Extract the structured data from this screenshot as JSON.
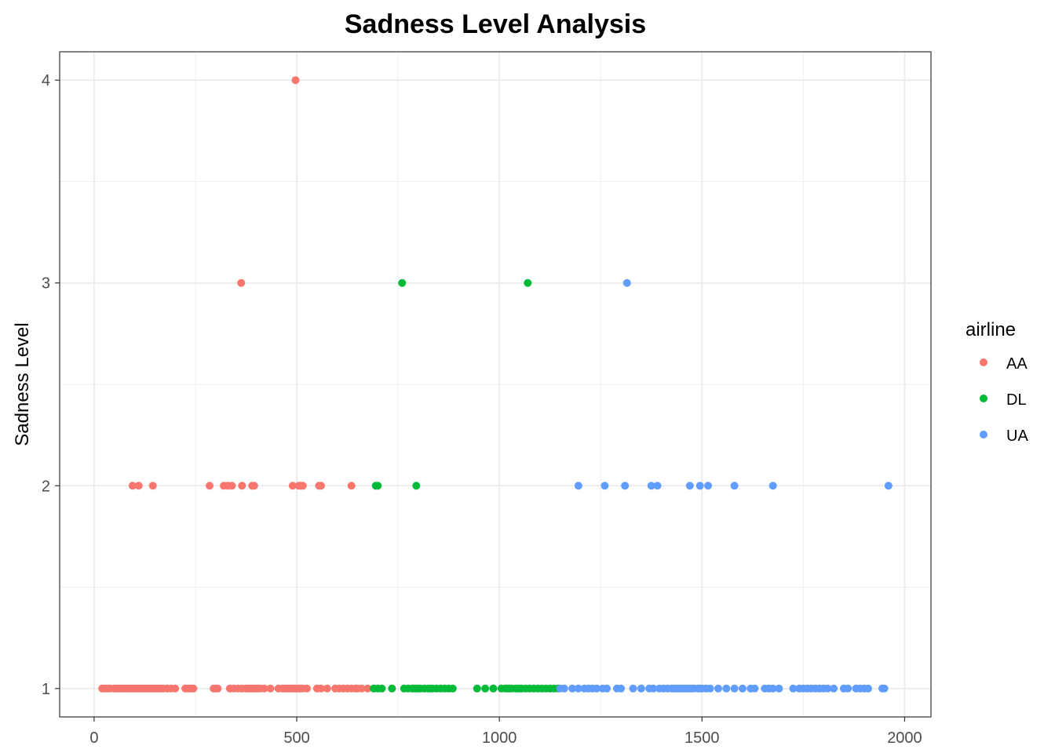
{
  "chart_data": {
    "type": "scatter",
    "title": "Sadness Level Analysis",
    "xlabel": "",
    "ylabel": "Sadness Level",
    "xlim": [
      -85,
      2065
    ],
    "ylim": [
      0.86,
      4.14
    ],
    "x_ticks": [
      0,
      500,
      1000,
      1500,
      2000
    ],
    "x_tick_labels": [
      "0",
      "500",
      "1000",
      "1500",
      "2000"
    ],
    "y_ticks": [
      1,
      2,
      3,
      4
    ],
    "y_tick_labels": [
      "1",
      "2",
      "3",
      "4"
    ],
    "grid": true,
    "legend": {
      "title": "airline",
      "position": "right"
    },
    "series": [
      {
        "name": "AA",
        "color": "#F8766D",
        "points": [
          [
            20,
            1
          ],
          [
            25,
            1
          ],
          [
            30,
            1
          ],
          [
            35,
            1
          ],
          [
            40,
            1
          ],
          [
            50,
            1
          ],
          [
            55,
            1
          ],
          [
            60,
            1
          ],
          [
            65,
            1
          ],
          [
            70,
            1
          ],
          [
            75,
            1
          ],
          [
            80,
            1
          ],
          [
            85,
            1
          ],
          [
            90,
            1
          ],
          [
            95,
            1
          ],
          [
            100,
            1
          ],
          [
            105,
            1
          ],
          [
            110,
            1
          ],
          [
            115,
            1
          ],
          [
            120,
            1
          ],
          [
            125,
            1
          ],
          [
            130,
            1
          ],
          [
            135,
            1
          ],
          [
            140,
            1
          ],
          [
            145,
            1
          ],
          [
            150,
            1
          ],
          [
            155,
            1
          ],
          [
            160,
            1
          ],
          [
            165,
            1
          ],
          [
            170,
            1
          ],
          [
            180,
            1
          ],
          [
            190,
            1
          ],
          [
            200,
            1
          ],
          [
            225,
            1
          ],
          [
            230,
            1
          ],
          [
            235,
            1
          ],
          [
            240,
            1
          ],
          [
            245,
            1
          ],
          [
            295,
            1
          ],
          [
            300,
            1
          ],
          [
            305,
            1
          ],
          [
            335,
            1
          ],
          [
            345,
            1
          ],
          [
            355,
            1
          ],
          [
            365,
            1
          ],
          [
            375,
            1
          ],
          [
            380,
            1
          ],
          [
            385,
            1
          ],
          [
            390,
            1
          ],
          [
            395,
            1
          ],
          [
            400,
            1
          ],
          [
            405,
            1
          ],
          [
            410,
            1
          ],
          [
            420,
            1
          ],
          [
            435,
            1
          ],
          [
            455,
            1
          ],
          [
            465,
            1
          ],
          [
            470,
            1
          ],
          [
            475,
            1
          ],
          [
            480,
            1
          ],
          [
            485,
            1
          ],
          [
            490,
            1
          ],
          [
            495,
            1
          ],
          [
            500,
            1
          ],
          [
            505,
            1
          ],
          [
            510,
            1
          ],
          [
            515,
            1
          ],
          [
            525,
            1
          ],
          [
            550,
            1
          ],
          [
            560,
            1
          ],
          [
            575,
            1
          ],
          [
            595,
            1
          ],
          [
            605,
            1
          ],
          [
            615,
            1
          ],
          [
            625,
            1
          ],
          [
            635,
            1
          ],
          [
            645,
            1
          ],
          [
            650,
            1
          ],
          [
            660,
            1
          ],
          [
            675,
            1
          ],
          [
            95,
            2
          ],
          [
            110,
            2
          ],
          [
            145,
            2
          ],
          [
            285,
            2
          ],
          [
            320,
            2
          ],
          [
            330,
            2
          ],
          [
            340,
            2
          ],
          [
            365,
            2
          ],
          [
            390,
            2
          ],
          [
            395,
            2
          ],
          [
            490,
            2
          ],
          [
            505,
            2
          ],
          [
            510,
            2
          ],
          [
            515,
            2
          ],
          [
            555,
            2
          ],
          [
            560,
            2
          ],
          [
            635,
            2
          ],
          [
            363,
            3
          ],
          [
            497,
            4
          ]
        ]
      },
      {
        "name": "DL",
        "color": "#00BA38",
        "points": [
          [
            690,
            1
          ],
          [
            700,
            1
          ],
          [
            710,
            1
          ],
          [
            735,
            1
          ],
          [
            765,
            1
          ],
          [
            775,
            1
          ],
          [
            785,
            1
          ],
          [
            790,
            1
          ],
          [
            795,
            1
          ],
          [
            800,
            1
          ],
          [
            805,
            1
          ],
          [
            815,
            1
          ],
          [
            825,
            1
          ],
          [
            830,
            1
          ],
          [
            835,
            1
          ],
          [
            845,
            1
          ],
          [
            855,
            1
          ],
          [
            865,
            1
          ],
          [
            875,
            1
          ],
          [
            885,
            1
          ],
          [
            945,
            1
          ],
          [
            965,
            1
          ],
          [
            985,
            1
          ],
          [
            1005,
            1
          ],
          [
            1015,
            1
          ],
          [
            1020,
            1
          ],
          [
            1025,
            1
          ],
          [
            1030,
            1
          ],
          [
            1040,
            1
          ],
          [
            1045,
            1
          ],
          [
            1050,
            1
          ],
          [
            1055,
            1
          ],
          [
            1065,
            1
          ],
          [
            1075,
            1
          ],
          [
            1085,
            1
          ],
          [
            1095,
            1
          ],
          [
            1105,
            1
          ],
          [
            1115,
            1
          ],
          [
            1125,
            1
          ],
          [
            1135,
            1
          ],
          [
            1145,
            1
          ],
          [
            695,
            2
          ],
          [
            700,
            2
          ],
          [
            795,
            2
          ],
          [
            760,
            3
          ],
          [
            1070,
            3
          ]
        ]
      },
      {
        "name": "UA",
        "color": "#619CFF",
        "points": [
          [
            1150,
            1
          ],
          [
            1160,
            1
          ],
          [
            1180,
            1
          ],
          [
            1195,
            1
          ],
          [
            1210,
            1
          ],
          [
            1220,
            1
          ],
          [
            1230,
            1
          ],
          [
            1240,
            1
          ],
          [
            1255,
            1
          ],
          [
            1265,
            1
          ],
          [
            1290,
            1
          ],
          [
            1300,
            1
          ],
          [
            1330,
            1
          ],
          [
            1350,
            1
          ],
          [
            1370,
            1
          ],
          [
            1380,
            1
          ],
          [
            1395,
            1
          ],
          [
            1405,
            1
          ],
          [
            1415,
            1
          ],
          [
            1425,
            1
          ],
          [
            1430,
            1
          ],
          [
            1435,
            1
          ],
          [
            1440,
            1
          ],
          [
            1445,
            1
          ],
          [
            1450,
            1
          ],
          [
            1455,
            1
          ],
          [
            1460,
            1
          ],
          [
            1465,
            1
          ],
          [
            1470,
            1
          ],
          [
            1475,
            1
          ],
          [
            1480,
            1
          ],
          [
            1490,
            1
          ],
          [
            1495,
            1
          ],
          [
            1500,
            1
          ],
          [
            1510,
            1
          ],
          [
            1520,
            1
          ],
          [
            1540,
            1
          ],
          [
            1560,
            1
          ],
          [
            1580,
            1
          ],
          [
            1600,
            1
          ],
          [
            1620,
            1
          ],
          [
            1630,
            1
          ],
          [
            1655,
            1
          ],
          [
            1665,
            1
          ],
          [
            1675,
            1
          ],
          [
            1690,
            1
          ],
          [
            1725,
            1
          ],
          [
            1740,
            1
          ],
          [
            1750,
            1
          ],
          [
            1760,
            1
          ],
          [
            1770,
            1
          ],
          [
            1780,
            1
          ],
          [
            1790,
            1
          ],
          [
            1800,
            1
          ],
          [
            1810,
            1
          ],
          [
            1825,
            1
          ],
          [
            1850,
            1
          ],
          [
            1860,
            1
          ],
          [
            1880,
            1
          ],
          [
            1890,
            1
          ],
          [
            1900,
            1
          ],
          [
            1910,
            1
          ],
          [
            1945,
            1
          ],
          [
            1950,
            1
          ],
          [
            1195,
            2
          ],
          [
            1260,
            2
          ],
          [
            1310,
            2
          ],
          [
            1375,
            2
          ],
          [
            1390,
            2
          ],
          [
            1470,
            2
          ],
          [
            1495,
            2
          ],
          [
            1515,
            2
          ],
          [
            1580,
            2
          ],
          [
            1675,
            2
          ],
          [
            1960,
            2
          ],
          [
            1315,
            3
          ]
        ]
      }
    ]
  }
}
